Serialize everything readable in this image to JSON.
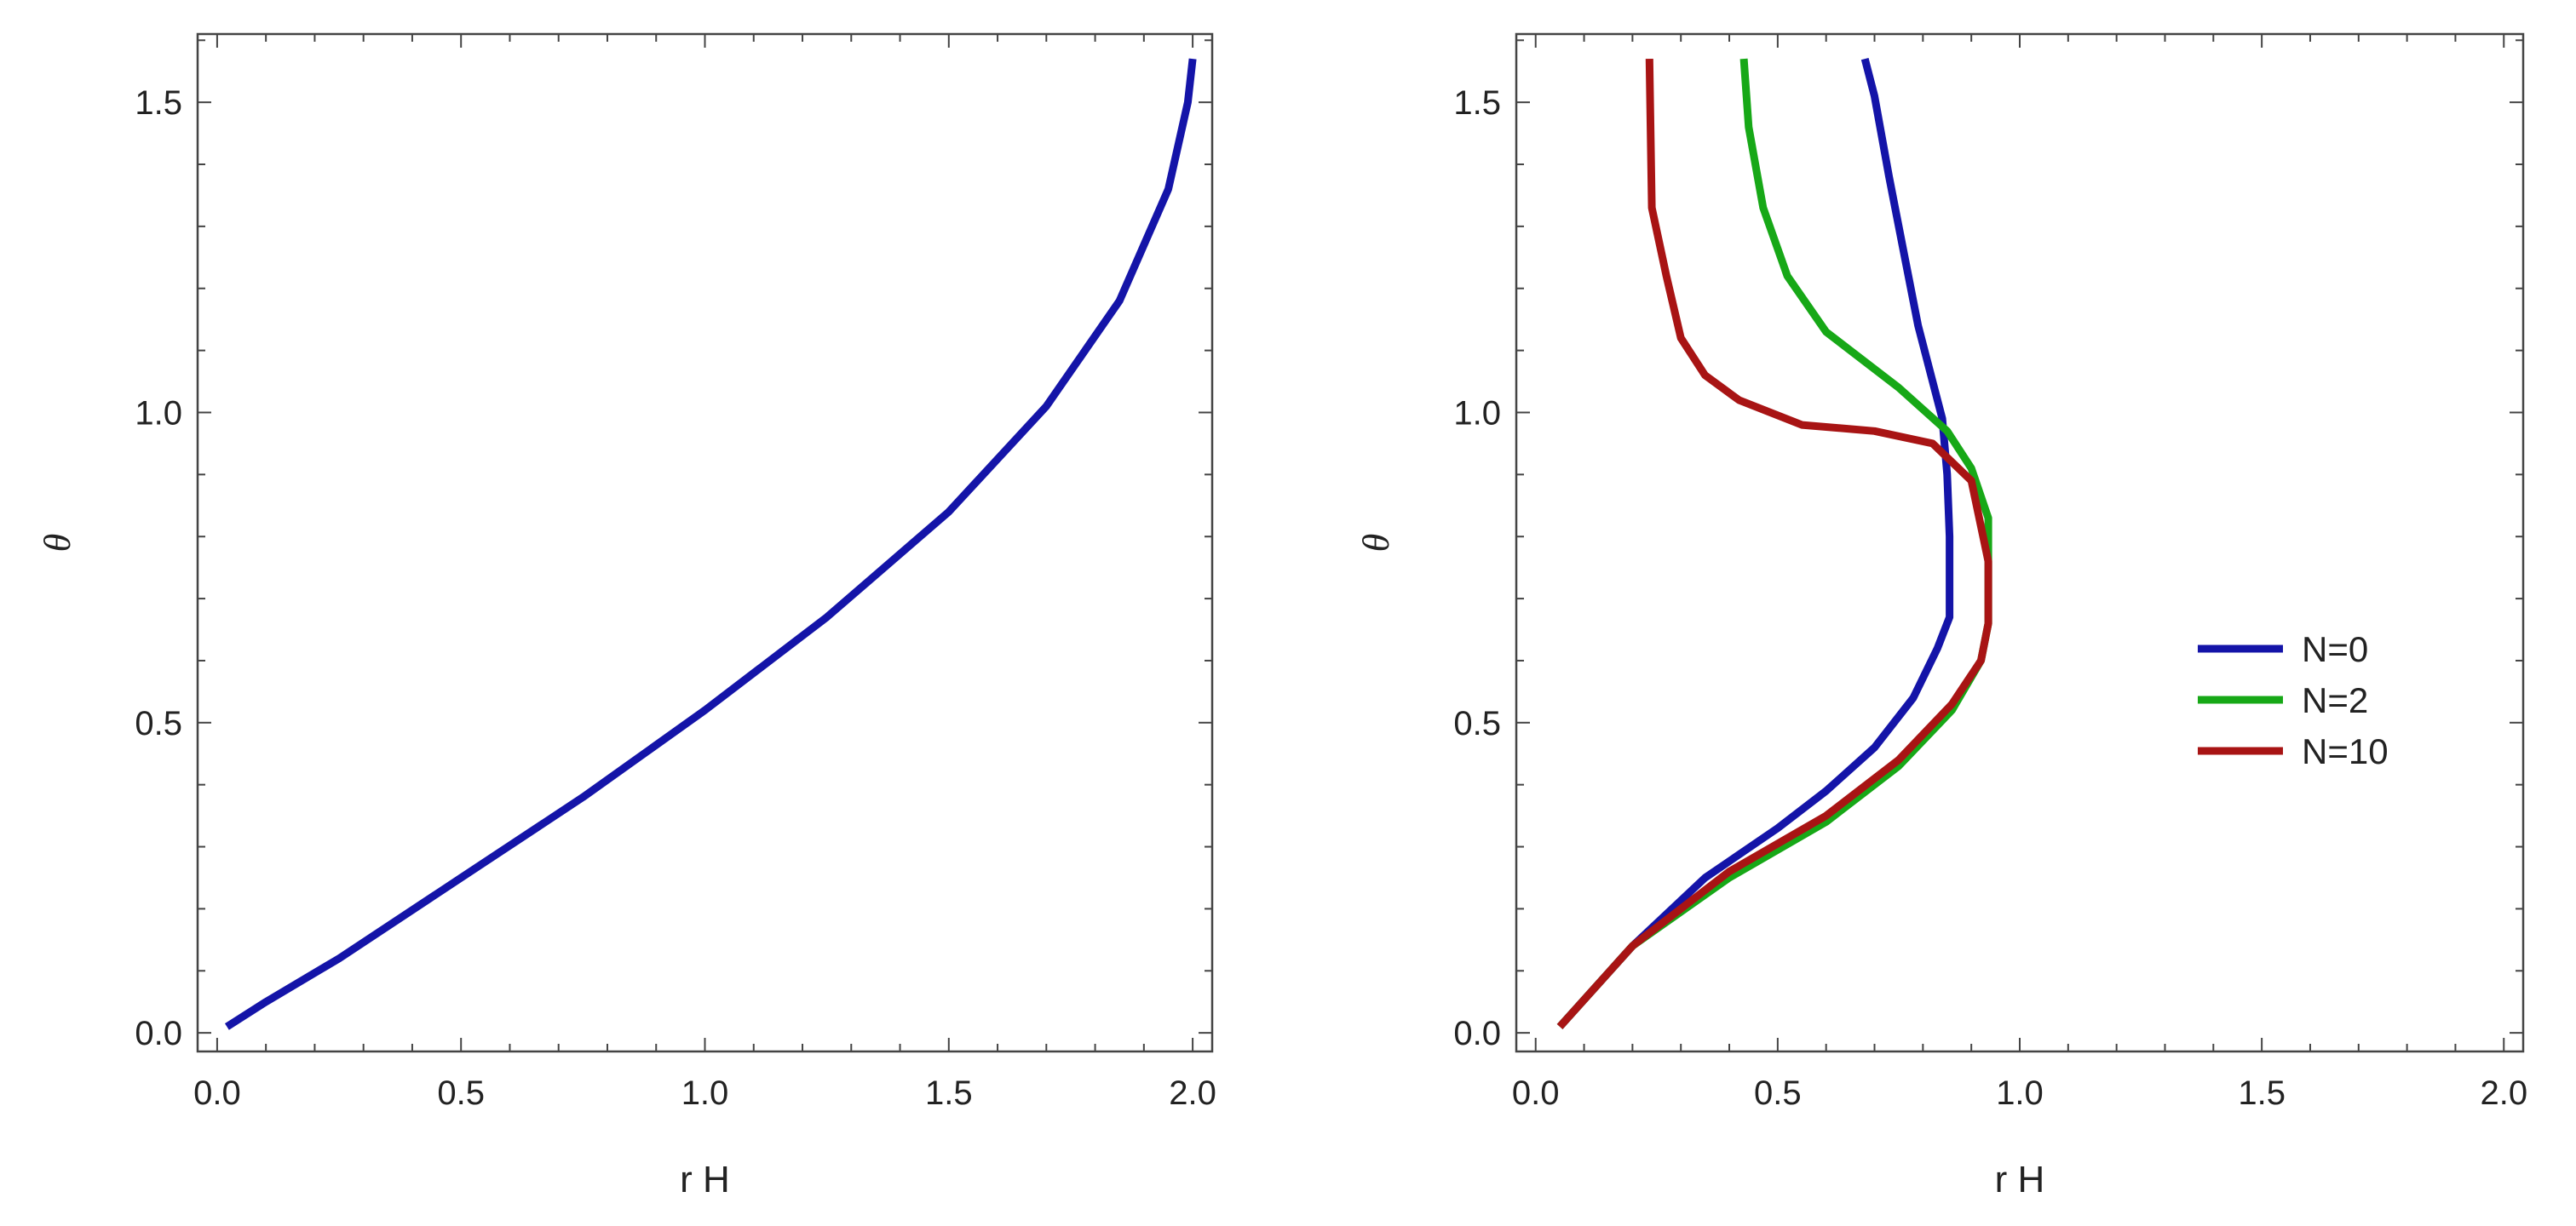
{
  "chart_data": [
    {
      "type": "line",
      "panel": "left",
      "title": "",
      "xlabel": "r H",
      "ylabel": "θ",
      "xlim": [
        -0.04,
        2.04
      ],
      "ylim": [
        -0.03,
        1.61
      ],
      "grid": false,
      "xticks": [
        0.0,
        0.5,
        1.0,
        1.5,
        2.0
      ],
      "xtick_labels": [
        "0.0",
        "0.5",
        "1.0",
        "1.5",
        "2.0"
      ],
      "yticks": [
        0.0,
        0.5,
        1.0,
        1.5
      ],
      "ytick_labels": [
        "0.0",
        "0.5",
        "1.0",
        "1.5"
      ],
      "series": [
        {
          "name": "",
          "color": "#1414a8",
          "x": [
            0.02,
            0.1,
            0.25,
            0.5,
            0.75,
            1.0,
            1.25,
            1.5,
            1.7,
            1.85,
            1.95,
            1.99,
            2.0
          ],
          "y": [
            0.01,
            0.05,
            0.12,
            0.25,
            0.38,
            0.52,
            0.67,
            0.84,
            1.01,
            1.18,
            1.36,
            1.5,
            1.57
          ]
        }
      ]
    },
    {
      "type": "line",
      "panel": "right",
      "title": "",
      "xlabel": "r H",
      "ylabel": "θ",
      "xlim": [
        -0.04,
        2.04
      ],
      "ylim": [
        -0.03,
        1.61
      ],
      "grid": false,
      "legend_position": "center-right",
      "xticks": [
        0.0,
        0.5,
        1.0,
        1.5,
        2.0
      ],
      "xtick_labels": [
        "0.0",
        "0.5",
        "1.0",
        "1.5",
        "2.0"
      ],
      "yticks": [
        0.0,
        0.5,
        1.0,
        1.5
      ],
      "ytick_labels": [
        "0.0",
        "0.5",
        "1.0",
        "1.5"
      ],
      "series": [
        {
          "name": "N=0",
          "color": "#1414a8",
          "x": [
            0.05,
            0.2,
            0.35,
            0.5,
            0.6,
            0.7,
            0.78,
            0.83,
            0.855,
            0.855,
            0.85,
            0.84,
            0.82,
            0.79,
            0.76,
            0.73,
            0.7,
            0.68
          ],
          "y": [
            0.01,
            0.14,
            0.25,
            0.33,
            0.39,
            0.46,
            0.54,
            0.62,
            0.67,
            0.8,
            0.9,
            0.99,
            1.05,
            1.14,
            1.26,
            1.38,
            1.51,
            1.57
          ]
        },
        {
          "name": "N=2",
          "color": "#17a817",
          "x": [
            0.05,
            0.2,
            0.4,
            0.6,
            0.75,
            0.86,
            0.92,
            0.935,
            0.935,
            0.9,
            0.85,
            0.75,
            0.6,
            0.52,
            0.47,
            0.44,
            0.43
          ],
          "y": [
            0.01,
            0.14,
            0.25,
            0.34,
            0.43,
            0.52,
            0.6,
            0.66,
            0.83,
            0.91,
            0.97,
            1.04,
            1.13,
            1.22,
            1.33,
            1.46,
            1.57
          ]
        },
        {
          "name": "N=10",
          "color": "#a81414",
          "x": [
            0.05,
            0.2,
            0.4,
            0.6,
            0.75,
            0.86,
            0.92,
            0.935,
            0.935,
            0.9,
            0.82,
            0.7,
            0.55,
            0.42,
            0.35,
            0.3,
            0.27,
            0.24,
            0.235
          ],
          "y": [
            0.01,
            0.14,
            0.26,
            0.35,
            0.44,
            0.53,
            0.6,
            0.66,
            0.76,
            0.89,
            0.95,
            0.97,
            0.98,
            1.02,
            1.06,
            1.12,
            1.22,
            1.33,
            1.57
          ]
        }
      ]
    }
  ]
}
